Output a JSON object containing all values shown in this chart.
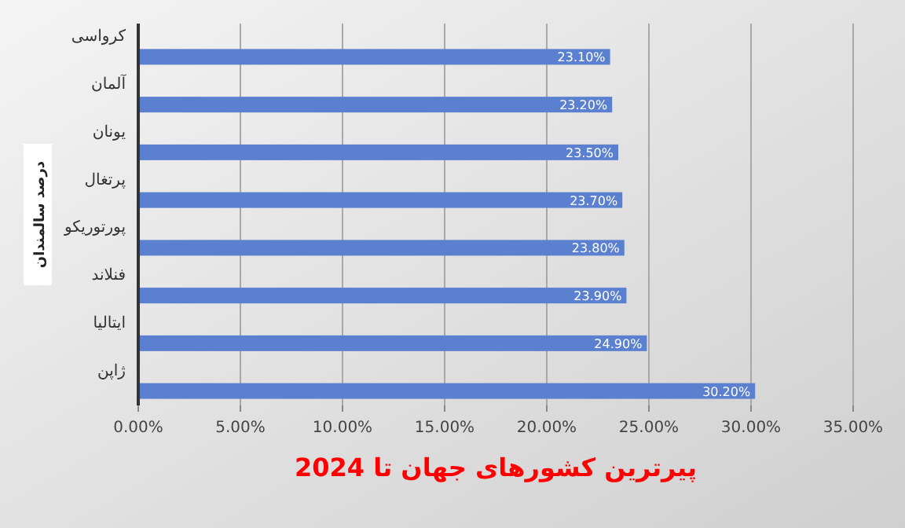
{
  "chart_data": {
    "type": "bar",
    "orientation": "horizontal",
    "title": "پیرترین کشورهای جهان تا 2024",
    "ylabel": "درصد سالمندان",
    "categories": [
      "کرواسی",
      "آلمان",
      "یونان",
      "پرتغال",
      "پورتوریکو",
      "فنلاند",
      "ایتالیا",
      "ژاپن"
    ],
    "values": [
      23.1,
      23.2,
      23.5,
      23.7,
      23.8,
      23.9,
      24.9,
      30.2
    ],
    "value_labels": [
      "23.10%",
      "23.20%",
      "23.50%",
      "23.70%",
      "23.80%",
      "23.90%",
      "24.90%",
      "30.20%"
    ],
    "color": "#5b80d0",
    "xlim": [
      0,
      35
    ],
    "xticks": [
      {
        "value": 0,
        "label": "0.00%"
      },
      {
        "value": 5,
        "label": "5.00%"
      },
      {
        "value": 10,
        "label": "10.00%"
      },
      {
        "value": 15,
        "label": "15.00%"
      },
      {
        "value": 20,
        "label": "20.00%"
      },
      {
        "value": 25,
        "label": "25.00%"
      },
      {
        "value": 30,
        "label": "30.00%"
      },
      {
        "value": 35,
        "label": "35.00%"
      }
    ],
    "grid": "x"
  }
}
